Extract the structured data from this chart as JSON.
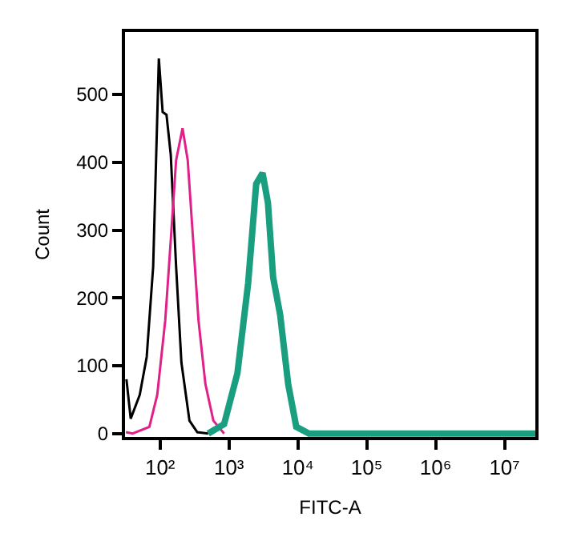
{
  "chart_data": {
    "type": "line",
    "xlabel": "FITC-A",
    "ylabel": "Count",
    "log": "x",
    "marker": "none",
    "line_style": "solid",
    "xlim": [
      31,
      28000000
    ],
    "ylim": [
      -5,
      592
    ],
    "xticks": [
      {
        "value": 100,
        "label": "10²"
      },
      {
        "value": 1000,
        "label": "10³"
      },
      {
        "value": 10000,
        "label": "10⁴"
      },
      {
        "value": 100000,
        "label": "10⁵"
      },
      {
        "value": 1000000,
        "label": "10⁶"
      },
      {
        "value": 10000000,
        "label": "10⁷"
      }
    ],
    "yticks": [
      0,
      100,
      200,
      300,
      400,
      500
    ],
    "series": [
      {
        "color": "#000000",
        "x": [
          32.5,
          37.5,
          50.7,
          64,
          79.4,
          96,
          109,
          124,
          143,
          171,
          204,
          267,
          347,
          500
        ],
        "values": [
          80,
          22,
          57,
          113,
          246,
          553,
          474,
          470,
          411,
          246,
          105,
          19,
          2,
          0
        ]
      },
      {
        "color": "#e0218a",
        "x": [
          32,
          40,
          70,
          91,
          119,
          143,
          171,
          212,
          252,
          302,
          361,
          455,
          594,
          851
        ],
        "values": [
          2,
          0,
          10,
          57,
          167,
          285,
          403,
          450,
          403,
          285,
          167,
          73,
          19,
          0
        ]
      },
      {
        "color": "#1a9e80",
        "x": [
          500,
          851,
          1327,
          1900,
          2485,
          3075,
          3680,
          4380,
          5540,
          7240,
          9480,
          14500,
          28000000
        ],
        "values": [
          0,
          14,
          89,
          222,
          368,
          384,
          340,
          230,
          175,
          73,
          10,
          0,
          0
        ]
      }
    ]
  }
}
